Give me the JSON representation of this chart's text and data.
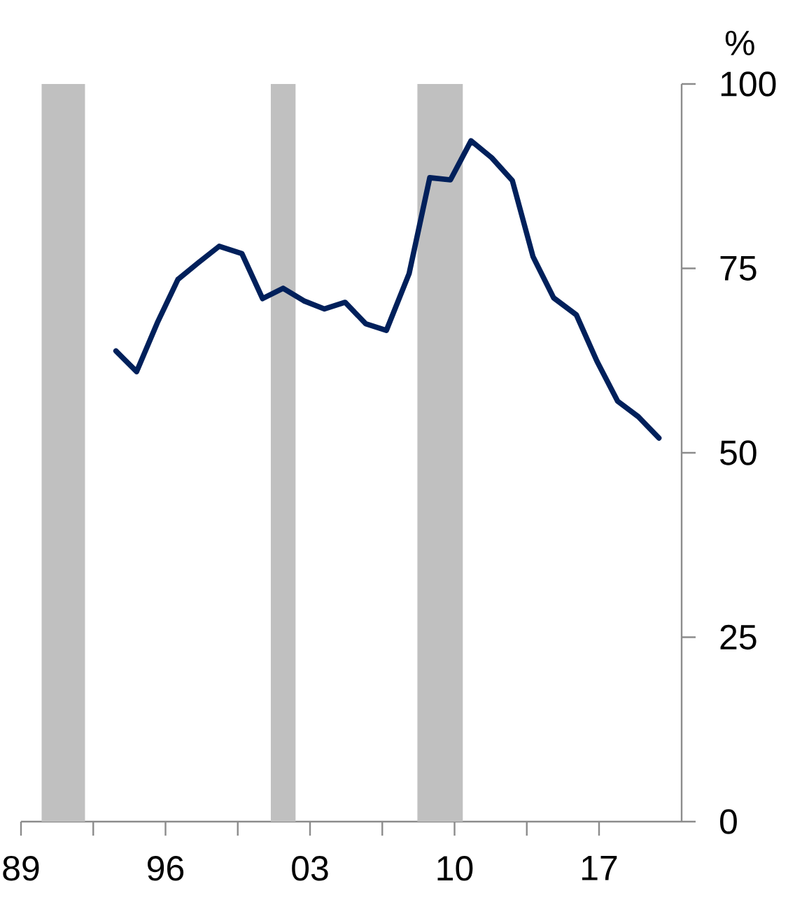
{
  "chart_data": {
    "type": "line",
    "ylabel": "%",
    "x": [
      1993.6,
      1994.6,
      1995.6,
      1996.6,
      1997.6,
      1998.6,
      1999.7,
      2000.7,
      2001.7,
      2002.7,
      2003.7,
      2004.7,
      2005.7,
      2006.7,
      2007.8,
      2008.8,
      2009.8,
      2010.8,
      2011.8,
      2012.8,
      2013.8,
      2014.8,
      2015.9,
      2016.9,
      2017.9,
      2018.9,
      2019.9
    ],
    "series": [
      {
        "color": "#00205b",
        "values": [
          63.8,
          61.0,
          67.6,
          73.5,
          75.8,
          78.0,
          77.0,
          70.9,
          72.3,
          70.6,
          69.5,
          70.4,
          67.5,
          66.6,
          74.3,
          87.3,
          87.0,
          92.3,
          90.0,
          86.9,
          76.6,
          71.0,
          68.7,
          62.4,
          57.0,
          54.9,
          52.0
        ]
      }
    ],
    "xlim": [
      1989,
      2021
    ],
    "xticks": [
      {
        "value": 1989,
        "label": "89"
      },
      {
        "value": 1992.5,
        "label": null
      },
      {
        "value": 1996,
        "label": "96"
      },
      {
        "value": 1999.5,
        "label": null
      },
      {
        "value": 2003,
        "label": "03"
      },
      {
        "value": 2006.5,
        "label": null
      },
      {
        "value": 2010,
        "label": "10"
      },
      {
        "value": 2013.5,
        "label": null
      },
      {
        "value": 2017,
        "label": "17"
      }
    ],
    "ylim": [
      0,
      100
    ],
    "yticks": [
      0,
      25,
      50,
      75,
      100
    ],
    "bands": [
      {
        "axis": "x",
        "from": 1990.0,
        "to": 1992.1,
        "color": "#c0c0c0"
      },
      {
        "axis": "x",
        "from": 2001.1,
        "to": 2002.3,
        "color": "#c0c0c0"
      },
      {
        "axis": "x",
        "from": 2008.2,
        "to": 2010.4,
        "color": "#c0c0c0"
      }
    ],
    "marker": "none",
    "line_style": "solid"
  }
}
